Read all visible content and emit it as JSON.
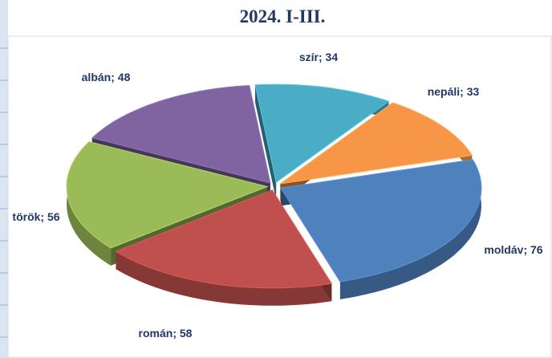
{
  "chart_data": {
    "type": "pie",
    "title": "2024. I-III.",
    "categories": [
      "szír",
      "nepáli",
      "moldáv",
      "román",
      "török",
      "albán"
    ],
    "values": [
      34,
      33,
      76,
      58,
      56,
      48
    ],
    "separator": "; ",
    "colors": [
      "#4bacc6",
      "#f79646",
      "#4f81bd",
      "#c0504d",
      "#9bbb59",
      "#8064a2"
    ]
  }
}
